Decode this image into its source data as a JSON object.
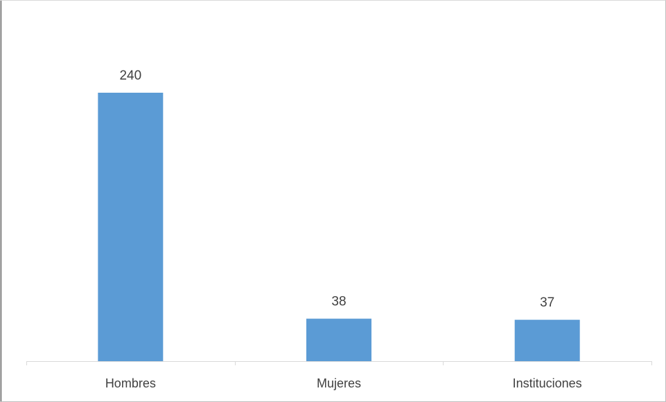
{
  "chart_data": {
    "type": "bar",
    "categories": [
      "Hombres",
      "Mujeres",
      "Instituciones"
    ],
    "values": [
      240,
      38,
      37
    ],
    "title": "",
    "xlabel": "",
    "ylabel": "",
    "ylim": [
      0,
      300
    ],
    "grid": false,
    "legend": "none",
    "data_labels": true,
    "colors": {
      "bar": "#5b9bd5",
      "axis": "#d9d9d9",
      "text": "#404040"
    }
  }
}
